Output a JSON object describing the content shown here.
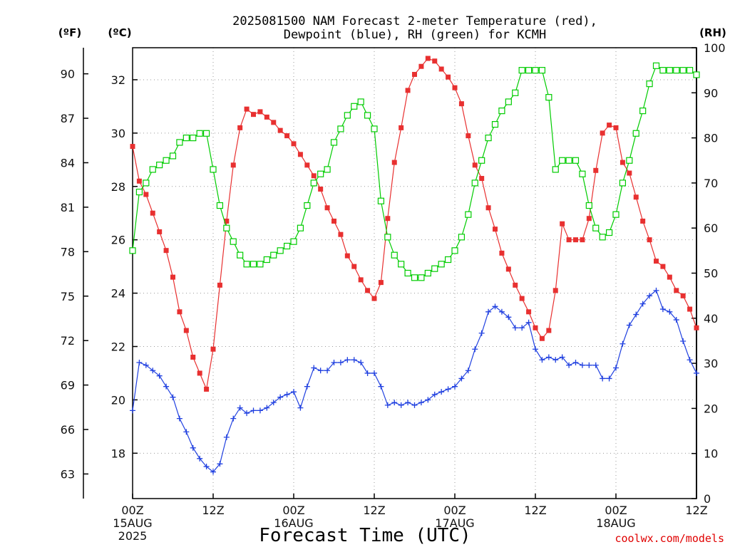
{
  "header": {
    "title_line1": "2025081500 NAM Forecast 2-meter Temperature (red),",
    "title_line2": "Dewpoint (blue), RH (green) for KCMH",
    "unit_f": "(ºF)",
    "unit_c": "(ºC)",
    "unit_rh": "(RH)"
  },
  "footer": {
    "xlabel": "Forecast Time (UTC)",
    "credit": "coolwx.com/models"
  },
  "colors": {
    "temperature": "#e83030",
    "dewpoint": "#2040e0",
    "rh": "#00cc00"
  },
  "chart_data": {
    "type": "line",
    "title": "2025081500 NAM Forecast 2-meter Temperature (red), Dewpoint (blue), RH (green) for KCMH",
    "xlabel": "Forecast Time (UTC)",
    "x_unit": "forecast hour",
    "xlim": [
      0,
      84
    ],
    "x_ticks": [
      {
        "hour": 0,
        "lines": [
          "00Z",
          "15AUG",
          "2025"
        ]
      },
      {
        "hour": 12,
        "lines": [
          "12Z"
        ]
      },
      {
        "hour": 24,
        "lines": [
          "00Z",
          "16AUG"
        ]
      },
      {
        "hour": 36,
        "lines": [
          "12Z"
        ]
      },
      {
        "hour": 48,
        "lines": [
          "00Z",
          "17AUG"
        ]
      },
      {
        "hour": 60,
        "lines": [
          "12Z"
        ]
      },
      {
        "hour": 72,
        "lines": [
          "00Z",
          "18AUG"
        ]
      },
      {
        "hour": 84,
        "lines": [
          "12Z"
        ]
      }
    ],
    "y_left_c": {
      "label": "(ºC)",
      "lim": [
        16.3,
        33.2
      ],
      "ticks": [
        18,
        20,
        22,
        24,
        26,
        28,
        30,
        32
      ]
    },
    "y_left_f": {
      "label": "(ºF)",
      "ticks": [
        63,
        66,
        69,
        72,
        75,
        78,
        81,
        84,
        87,
        90
      ]
    },
    "y_right": {
      "label": "(RH)",
      "lim": [
        0,
        100
      ],
      "ticks": [
        0,
        10,
        20,
        30,
        40,
        50,
        60,
        70,
        80,
        90,
        100
      ]
    },
    "grid": true,
    "x": [
      0,
      1,
      2,
      3,
      4,
      5,
      6,
      7,
      8,
      9,
      10,
      11,
      12,
      13,
      14,
      15,
      16,
      17,
      18,
      19,
      20,
      21,
      22,
      23,
      24,
      25,
      26,
      27,
      28,
      29,
      30,
      31,
      32,
      33,
      34,
      35,
      36,
      37,
      38,
      39,
      40,
      41,
      42,
      43,
      44,
      45,
      46,
      47,
      48,
      49,
      50,
      51,
      52,
      53,
      54,
      55,
      56,
      57,
      58,
      59,
      60,
      61,
      62,
      63,
      64,
      65,
      66,
      67,
      68,
      69,
      70,
      71,
      72,
      73,
      74,
      75,
      76,
      77,
      78,
      79,
      80,
      81,
      82,
      83,
      84
    ],
    "series": [
      {
        "name": "Temperature",
        "axis": "C",
        "marker": "filled-square",
        "values": [
          29.5,
          28.2,
          27.7,
          27.0,
          26.3,
          25.6,
          24.6,
          23.3,
          22.6,
          21.6,
          21.0,
          20.4,
          21.9,
          24.3,
          26.7,
          28.8,
          30.2,
          30.9,
          30.7,
          30.8,
          30.6,
          30.4,
          30.1,
          29.9,
          29.6,
          29.2,
          28.8,
          28.4,
          27.9,
          27.2,
          26.7,
          26.2,
          25.4,
          25.0,
          24.5,
          24.1,
          23.8,
          24.4,
          26.8,
          28.9,
          30.2,
          31.6,
          32.2,
          32.5,
          32.8,
          32.7,
          32.4,
          32.1,
          31.7,
          31.1,
          29.9,
          28.8,
          28.3,
          27.2,
          26.4,
          25.5,
          24.9,
          24.3,
          23.8,
          23.3,
          22.7,
          22.3,
          22.6,
          24.1,
          26.6,
          26.0,
          26.0,
          26.0,
          26.8,
          28.6,
          30.0,
          30.3,
          30.2,
          28.9,
          28.5,
          27.6,
          26.7,
          26.0,
          25.2,
          25.0,
          24.6,
          24.1,
          23.9,
          23.4,
          22.7
        ]
      },
      {
        "name": "Dewpoint",
        "axis": "C",
        "marker": "plus",
        "values": [
          19.6,
          21.4,
          21.3,
          21.1,
          20.9,
          20.5,
          20.1,
          19.3,
          18.8,
          18.2,
          17.8,
          17.5,
          17.3,
          17.6,
          18.6,
          19.3,
          19.7,
          19.5,
          19.6,
          19.6,
          19.7,
          19.9,
          20.1,
          20.2,
          20.3,
          19.7,
          20.5,
          21.2,
          21.1,
          21.1,
          21.4,
          21.4,
          21.5,
          21.5,
          21.4,
          21.0,
          21.0,
          20.5,
          19.8,
          19.9,
          19.8,
          19.9,
          19.8,
          19.9,
          20.0,
          20.2,
          20.3,
          20.4,
          20.5,
          20.8,
          21.1,
          21.9,
          22.5,
          23.3,
          23.5,
          23.3,
          23.1,
          22.7,
          22.7,
          22.9,
          21.9,
          21.5,
          21.6,
          21.5,
          21.6,
          21.3,
          21.4,
          21.3,
          21.3,
          21.3,
          20.8,
          20.8,
          21.2,
          22.1,
          22.8,
          23.2,
          23.6,
          23.9,
          24.1,
          23.4,
          23.3,
          23.0,
          22.2,
          21.5,
          21.0
        ]
      },
      {
        "name": "RH",
        "axis": "RH",
        "marker": "open-square",
        "values": [
          55,
          68,
          70,
          73,
          74,
          75,
          76,
          79,
          80,
          80,
          81,
          81,
          73,
          65,
          60,
          57,
          54,
          52,
          52,
          52,
          53,
          54,
          55,
          56,
          57,
          60,
          65,
          70,
          72,
          73,
          79,
          82,
          85,
          87,
          88,
          85,
          82,
          66,
          58,
          54,
          52,
          50,
          49,
          49,
          50,
          51,
          52,
          53,
          55,
          58,
          63,
          70,
          75,
          80,
          83,
          86,
          88,
          90,
          95,
          95,
          95,
          95,
          89,
          73,
          75,
          75,
          75,
          72,
          65,
          60,
          58,
          59,
          63,
          70,
          75,
          81,
          86,
          92,
          96,
          95,
          95,
          95,
          95,
          95,
          94
        ]
      }
    ]
  }
}
